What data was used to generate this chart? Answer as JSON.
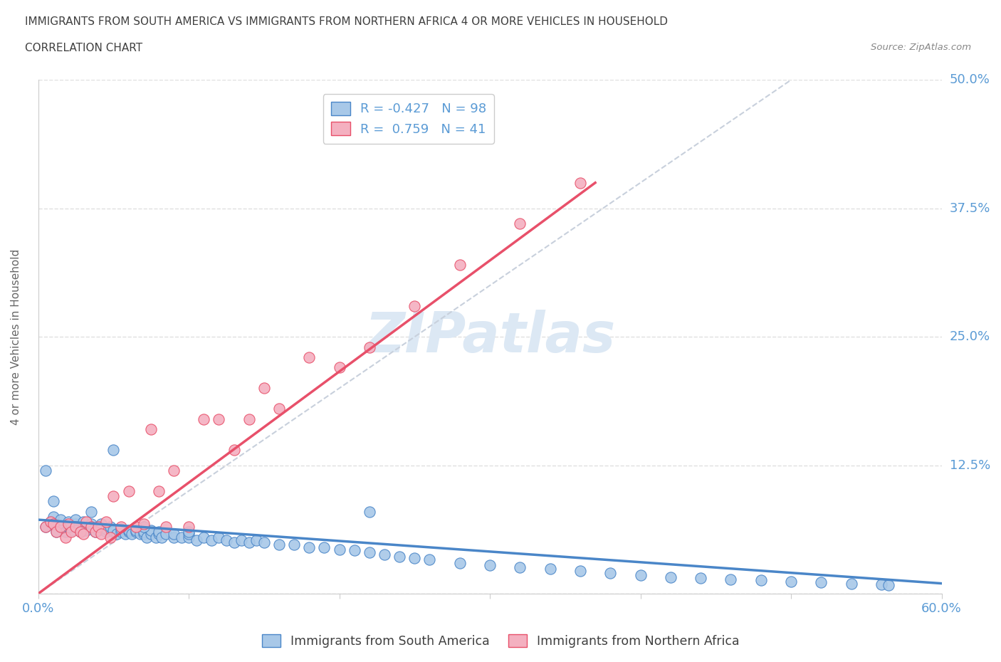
{
  "title_line1": "IMMIGRANTS FROM SOUTH AMERICA VS IMMIGRANTS FROM NORTHERN AFRICA 4 OR MORE VEHICLES IN HOUSEHOLD",
  "title_line2": "CORRELATION CHART",
  "source_text": "Source: ZipAtlas.com",
  "ylabel": "4 or more Vehicles in Household",
  "xlim": [
    0.0,
    0.6
  ],
  "ylim": [
    0.0,
    0.5
  ],
  "xticks": [
    0.0,
    0.1,
    0.2,
    0.3,
    0.4,
    0.5,
    0.6
  ],
  "yticks": [
    0.0,
    0.125,
    0.25,
    0.375,
    0.5
  ],
  "ytick_labels": [
    "",
    "12.5%",
    "25.0%",
    "37.5%",
    "50.0%"
  ],
  "blue_R": -0.427,
  "blue_N": 98,
  "pink_R": 0.759,
  "pink_N": 41,
  "blue_color": "#a8c8e8",
  "pink_color": "#f4b0c0",
  "blue_line_color": "#4a86c8",
  "pink_line_color": "#e8506a",
  "ref_line_color": "#c8d0dc",
  "watermark_color": "#dce8f4",
  "legend_label_blue": "Immigrants from South America",
  "legend_label_pink": "Immigrants from Northern Africa",
  "blue_scatter_x": [
    0.005,
    0.008,
    0.01,
    0.01,
    0.012,
    0.015,
    0.015,
    0.018,
    0.02,
    0.02,
    0.022,
    0.025,
    0.025,
    0.028,
    0.03,
    0.03,
    0.032,
    0.035,
    0.035,
    0.038,
    0.04,
    0.04,
    0.042,
    0.045,
    0.045,
    0.048,
    0.05,
    0.05,
    0.052,
    0.055,
    0.055,
    0.058,
    0.06,
    0.06,
    0.062,
    0.065,
    0.065,
    0.068,
    0.07,
    0.07,
    0.072,
    0.075,
    0.075,
    0.078,
    0.08,
    0.08,
    0.082,
    0.085,
    0.09,
    0.09,
    0.095,
    0.1,
    0.1,
    0.105,
    0.11,
    0.115,
    0.12,
    0.125,
    0.13,
    0.135,
    0.14,
    0.145,
    0.15,
    0.16,
    0.17,
    0.18,
    0.19,
    0.2,
    0.21,
    0.22,
    0.23,
    0.24,
    0.25,
    0.26,
    0.28,
    0.3,
    0.32,
    0.34,
    0.36,
    0.38,
    0.4,
    0.42,
    0.44,
    0.46,
    0.48,
    0.5,
    0.52,
    0.54,
    0.56,
    0.565,
    0.005,
    0.01,
    0.02,
    0.035,
    0.05,
    0.07,
    0.1,
    0.22
  ],
  "blue_scatter_y": [
    0.065,
    0.07,
    0.068,
    0.075,
    0.06,
    0.065,
    0.072,
    0.06,
    0.065,
    0.07,
    0.062,
    0.068,
    0.072,
    0.06,
    0.065,
    0.07,
    0.062,
    0.065,
    0.068,
    0.06,
    0.062,
    0.065,
    0.068,
    0.06,
    0.063,
    0.065,
    0.06,
    0.062,
    0.058,
    0.06,
    0.063,
    0.058,
    0.06,
    0.062,
    0.058,
    0.06,
    0.062,
    0.058,
    0.058,
    0.06,
    0.055,
    0.058,
    0.062,
    0.055,
    0.058,
    0.06,
    0.055,
    0.058,
    0.055,
    0.058,
    0.055,
    0.055,
    0.058,
    0.052,
    0.055,
    0.052,
    0.055,
    0.052,
    0.05,
    0.052,
    0.05,
    0.052,
    0.05,
    0.048,
    0.048,
    0.045,
    0.045,
    0.043,
    0.042,
    0.04,
    0.038,
    0.036,
    0.035,
    0.033,
    0.03,
    0.028,
    0.026,
    0.024,
    0.022,
    0.02,
    0.018,
    0.016,
    0.015,
    0.014,
    0.013,
    0.012,
    0.011,
    0.01,
    0.009,
    0.008,
    0.12,
    0.09,
    0.065,
    0.08,
    0.14,
    0.065,
    0.06,
    0.08
  ],
  "pink_scatter_x": [
    0.005,
    0.008,
    0.01,
    0.012,
    0.015,
    0.018,
    0.02,
    0.022,
    0.025,
    0.028,
    0.03,
    0.032,
    0.035,
    0.038,
    0.04,
    0.042,
    0.045,
    0.048,
    0.05,
    0.055,
    0.06,
    0.065,
    0.07,
    0.075,
    0.08,
    0.085,
    0.09,
    0.1,
    0.11,
    0.12,
    0.13,
    0.14,
    0.15,
    0.16,
    0.18,
    0.2,
    0.22,
    0.25,
    0.28,
    0.32,
    0.36
  ],
  "pink_scatter_y": [
    0.065,
    0.07,
    0.068,
    0.06,
    0.065,
    0.055,
    0.068,
    0.06,
    0.065,
    0.06,
    0.058,
    0.07,
    0.065,
    0.06,
    0.065,
    0.058,
    0.07,
    0.055,
    0.095,
    0.065,
    0.1,
    0.065,
    0.068,
    0.16,
    0.1,
    0.065,
    0.12,
    0.065,
    0.17,
    0.17,
    0.14,
    0.17,
    0.2,
    0.18,
    0.23,
    0.22,
    0.24,
    0.28,
    0.32,
    0.36,
    0.4
  ],
  "blue_trend_x": [
    0.0,
    0.6
  ],
  "blue_trend_y": [
    0.072,
    0.01
  ],
  "pink_trend_x": [
    0.0,
    0.37
  ],
  "pink_trend_y": [
    0.0,
    0.4
  ],
  "ref_line_x": [
    0.0,
    0.5
  ],
  "ref_line_y": [
    0.0,
    0.5
  ],
  "background_color": "#ffffff",
  "grid_color": "#e0e0e0",
  "title_color": "#404040",
  "tick_label_color": "#5b9bd5"
}
